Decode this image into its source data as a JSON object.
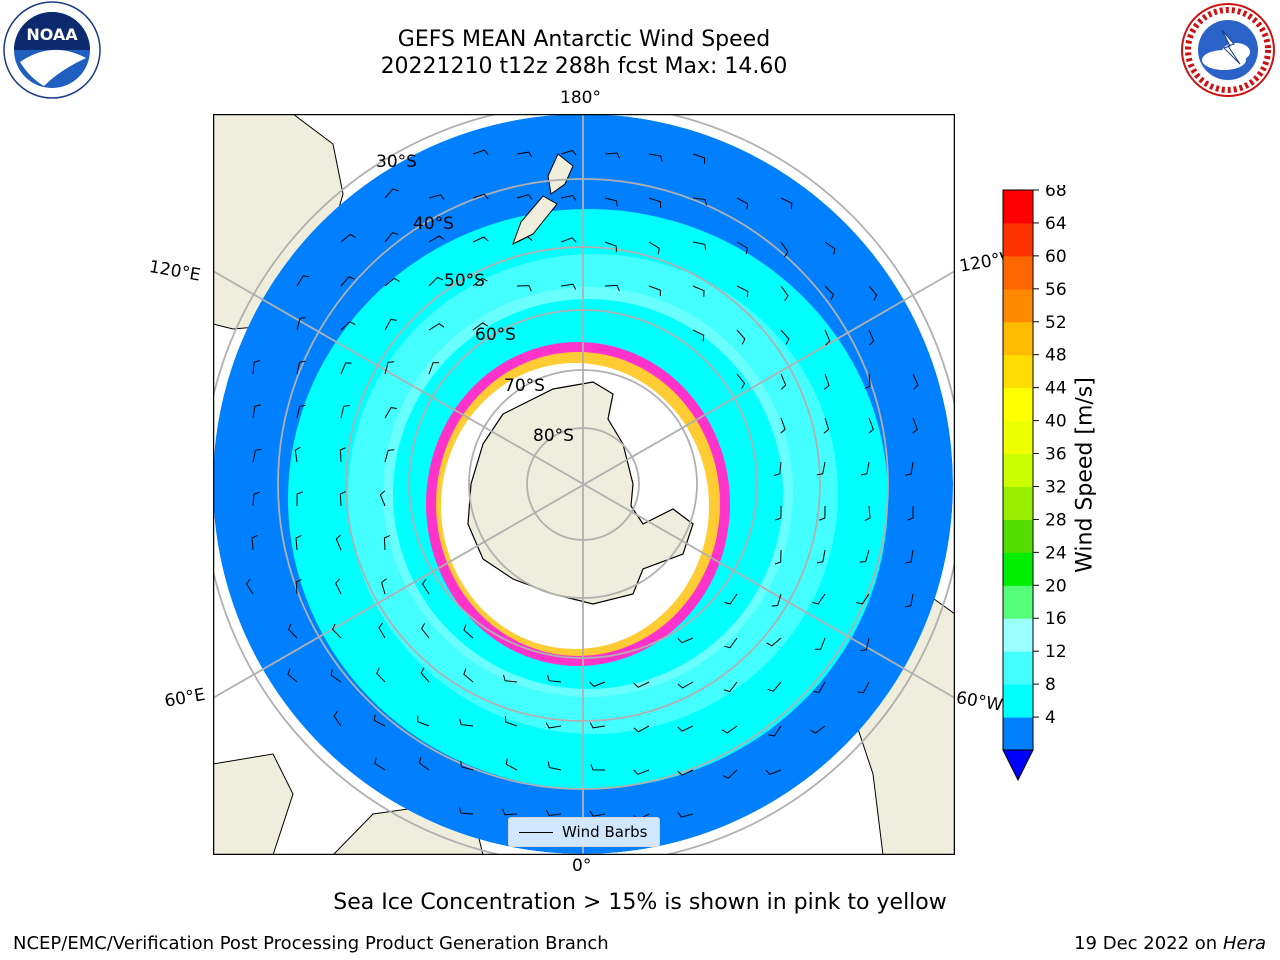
{
  "header": {
    "title_line1": "GEFS MEAN Antarctic Wind Speed",
    "title_line2": "20221210 t12z 288h fcst   Max: 14.60"
  },
  "logos": {
    "left": "noaa-logo",
    "right": "nws-logo"
  },
  "map": {
    "projection": "south-polar-stereographic",
    "lon_labels": {
      "top": "180°",
      "bottom": "0°",
      "left_upper": "120°E",
      "left_lower": "60°E",
      "right_upper": "120°W",
      "right_lower": "60°W"
    },
    "lat_labels": [
      "30°S",
      "40°S",
      "50°S",
      "60°S",
      "70°S",
      "80°S"
    ],
    "legend_label": "Wind Barbs",
    "colors": {
      "land": "#efeddb",
      "ocean_low": "#0080ff",
      "band_8_12": "#00ffff",
      "band_12_16": "#44ffff",
      "band_16_20": "#99ffff",
      "sea_ice_low": "#ff33cc",
      "sea_ice_high": "#ffcc33"
    }
  },
  "colorbar": {
    "label": "Wind Speed [m/s]",
    "ticks": [
      "68",
      "64",
      "60",
      "56",
      "52",
      "48",
      "44",
      "40",
      "36",
      "32",
      "28",
      "24",
      "20",
      "16",
      "12",
      "8",
      "4"
    ],
    "colors": [
      "#0080ff",
      "#00ffff",
      "#44ffff",
      "#99ffff",
      "#55ff77",
      "#00ee00",
      "#55dd00",
      "#99ee00",
      "#ccff00",
      "#eeff00",
      "#ffff00",
      "#ffdd00",
      "#ffbb00",
      "#ff8800",
      "#ff6600",
      "#ff3300",
      "#ff0000"
    ],
    "extend_color": "#0000ff",
    "range": [
      4,
      68
    ]
  },
  "footer": {
    "subtitle": "Sea Ice Concentration > 15% is shown in pink to yellow",
    "left": "NCEP/EMC/Verification Post Processing Product Generation Branch",
    "right_date": "19 Dec 2022 on",
    "right_host": "Hera"
  }
}
